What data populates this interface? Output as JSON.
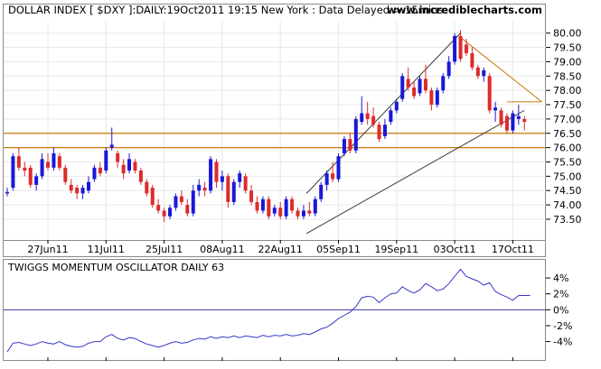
{
  "header": {
    "title": "DOLLAR INDEX [ $DXY ]:DAILY:19Oct2011 19:15 New York  : Data Delayed > 15mins",
    "website": "www.incrediblecharts.com"
  },
  "colors": {
    "up": "#1818d8",
    "down": "#dd2b2b",
    "channel": "#3a3a3a",
    "trendline": "#c8780a",
    "support": "#c8780a",
    "oscillator": "#3838c8",
    "grid": "#e8e8e8"
  },
  "chart_data": [
    {
      "type": "candlestick",
      "title": "DOLLAR INDEX [ $DXY ]:DAILY:19Oct2011 19:15 New York",
      "yticks": [
        "80.00",
        "79.50",
        "79.00",
        "78.50",
        "78.00",
        "77.50",
        "77.00",
        "76.50",
        "76.00",
        "75.50",
        "75.00",
        "74.50",
        "74.00",
        "73.50"
      ],
      "ylim": [
        72.9,
        80.4
      ],
      "xticks": [
        {
          "label": "27Jun11",
          "i": 7
        },
        {
          "label": "11Jul11",
          "i": 17
        },
        {
          "label": "25Jul11",
          "i": 27
        },
        {
          "label": "08Aug11",
          "i": 37
        },
        {
          "label": "22Aug11",
          "i": 47
        },
        {
          "label": "05Sep11",
          "i": 57
        },
        {
          "label": "19Sep11",
          "i": 67
        },
        {
          "label": "03Oct11",
          "i": 77
        },
        {
          "label": "17Oct11",
          "i": 87
        }
      ],
      "candles": [
        {
          "o": 74.4,
          "h": 74.6,
          "l": 74.3,
          "c": 74.45
        },
        {
          "o": 74.6,
          "h": 75.8,
          "l": 74.5,
          "c": 75.7
        },
        {
          "o": 75.7,
          "h": 76.0,
          "l": 75.2,
          "c": 75.3
        },
        {
          "o": 75.3,
          "h": 75.5,
          "l": 75.0,
          "c": 75.2
        },
        {
          "o": 75.3,
          "h": 75.4,
          "l": 74.6,
          "c": 74.7
        },
        {
          "o": 74.7,
          "h": 75.1,
          "l": 74.5,
          "c": 75.0
        },
        {
          "o": 75.0,
          "h": 75.8,
          "l": 74.9,
          "c": 75.6
        },
        {
          "o": 75.5,
          "h": 75.8,
          "l": 75.2,
          "c": 75.3
        },
        {
          "o": 75.3,
          "h": 76.0,
          "l": 75.2,
          "c": 75.8
        },
        {
          "o": 75.7,
          "h": 75.8,
          "l": 75.2,
          "c": 75.3
        },
        {
          "o": 75.3,
          "h": 75.4,
          "l": 74.7,
          "c": 74.8
        },
        {
          "o": 74.7,
          "h": 74.9,
          "l": 74.4,
          "c": 74.5
        },
        {
          "o": 74.6,
          "h": 74.7,
          "l": 74.2,
          "c": 74.4
        },
        {
          "o": 74.4,
          "h": 74.7,
          "l": 74.2,
          "c": 74.6
        },
        {
          "o": 74.5,
          "h": 75.0,
          "l": 74.4,
          "c": 74.8
        },
        {
          "o": 74.9,
          "h": 75.4,
          "l": 74.8,
          "c": 75.3
        },
        {
          "o": 75.3,
          "h": 75.5,
          "l": 75.0,
          "c": 75.1
        },
        {
          "o": 75.2,
          "h": 76.0,
          "l": 75.1,
          "c": 75.9
        },
        {
          "o": 76.0,
          "h": 76.7,
          "l": 75.9,
          "c": 76.1
        },
        {
          "o": 75.8,
          "h": 75.9,
          "l": 75.3,
          "c": 75.5
        },
        {
          "o": 75.4,
          "h": 75.6,
          "l": 74.9,
          "c": 75.1
        },
        {
          "o": 75.2,
          "h": 75.8,
          "l": 75.1,
          "c": 75.6
        },
        {
          "o": 75.5,
          "h": 75.6,
          "l": 75.1,
          "c": 75.2
        },
        {
          "o": 75.2,
          "h": 75.3,
          "l": 74.7,
          "c": 74.8
        },
        {
          "o": 74.8,
          "h": 74.9,
          "l": 74.3,
          "c": 74.4
        },
        {
          "o": 74.6,
          "h": 74.7,
          "l": 73.9,
          "c": 74.0
        },
        {
          "o": 74.0,
          "h": 74.2,
          "l": 73.7,
          "c": 73.8
        },
        {
          "o": 73.8,
          "h": 73.9,
          "l": 73.4,
          "c": 73.6
        },
        {
          "o": 73.6,
          "h": 74.0,
          "l": 73.5,
          "c": 73.9
        },
        {
          "o": 73.9,
          "h": 74.4,
          "l": 73.8,
          "c": 74.3
        },
        {
          "o": 74.3,
          "h": 74.5,
          "l": 74.0,
          "c": 74.1
        },
        {
          "o": 74.0,
          "h": 74.2,
          "l": 73.6,
          "c": 73.7
        },
        {
          "o": 73.7,
          "h": 74.7,
          "l": 73.6,
          "c": 74.5
        },
        {
          "o": 74.5,
          "h": 74.9,
          "l": 74.3,
          "c": 74.7
        },
        {
          "o": 74.6,
          "h": 74.8,
          "l": 74.3,
          "c": 74.5
        },
        {
          "o": 74.5,
          "h": 75.7,
          "l": 74.4,
          "c": 75.6
        },
        {
          "o": 75.5,
          "h": 75.6,
          "l": 74.6,
          "c": 74.8
        },
        {
          "o": 74.8,
          "h": 75.2,
          "l": 74.5,
          "c": 75.0
        },
        {
          "o": 75.0,
          "h": 75.1,
          "l": 73.9,
          "c": 74.1
        },
        {
          "o": 74.1,
          "h": 74.9,
          "l": 74.0,
          "c": 74.8
        },
        {
          "o": 74.8,
          "h": 75.2,
          "l": 74.6,
          "c": 75.1
        },
        {
          "o": 75.0,
          "h": 75.1,
          "l": 74.4,
          "c": 74.5
        },
        {
          "o": 74.5,
          "h": 74.7,
          "l": 74.0,
          "c": 74.1
        },
        {
          "o": 74.1,
          "h": 74.3,
          "l": 73.7,
          "c": 73.8
        },
        {
          "o": 73.8,
          "h": 74.3,
          "l": 73.7,
          "c": 74.2
        },
        {
          "o": 74.2,
          "h": 74.3,
          "l": 73.5,
          "c": 73.6
        },
        {
          "o": 73.7,
          "h": 74.0,
          "l": 73.6,
          "c": 73.9
        },
        {
          "o": 73.9,
          "h": 74.1,
          "l": 73.5,
          "c": 73.6
        },
        {
          "o": 73.6,
          "h": 74.3,
          "l": 73.5,
          "c": 74.2
        },
        {
          "o": 74.2,
          "h": 74.3,
          "l": 73.7,
          "c": 73.8
        },
        {
          "o": 73.8,
          "h": 73.9,
          "l": 73.5,
          "c": 73.6
        },
        {
          "o": 73.6,
          "h": 74.0,
          "l": 73.5,
          "c": 73.8
        },
        {
          "o": 73.8,
          "h": 74.1,
          "l": 73.6,
          "c": 73.7
        },
        {
          "o": 73.7,
          "h": 74.3,
          "l": 73.6,
          "c": 74.2
        },
        {
          "o": 74.2,
          "h": 74.8,
          "l": 74.1,
          "c": 74.7
        },
        {
          "o": 74.7,
          "h": 75.2,
          "l": 74.5,
          "c": 75.1
        },
        {
          "o": 75.1,
          "h": 75.5,
          "l": 74.8,
          "c": 74.9
        },
        {
          "o": 74.9,
          "h": 75.8,
          "l": 74.8,
          "c": 75.7
        },
        {
          "o": 75.8,
          "h": 76.4,
          "l": 75.7,
          "c": 76.3
        },
        {
          "o": 76.3,
          "h": 76.5,
          "l": 75.8,
          "c": 75.9
        },
        {
          "o": 75.9,
          "h": 77.1,
          "l": 75.8,
          "c": 77.0
        },
        {
          "o": 76.9,
          "h": 77.8,
          "l": 76.8,
          "c": 77.2
        },
        {
          "o": 77.2,
          "h": 77.6,
          "l": 76.8,
          "c": 77.0
        },
        {
          "o": 77.1,
          "h": 77.4,
          "l": 76.7,
          "c": 76.8
        },
        {
          "o": 76.8,
          "h": 76.9,
          "l": 76.2,
          "c": 76.3
        },
        {
          "o": 76.4,
          "h": 77.0,
          "l": 76.3,
          "c": 76.8
        },
        {
          "o": 76.9,
          "h": 77.4,
          "l": 76.8,
          "c": 77.3
        },
        {
          "o": 77.3,
          "h": 77.7,
          "l": 77.2,
          "c": 77.6
        },
        {
          "o": 77.7,
          "h": 78.6,
          "l": 77.6,
          "c": 78.5
        },
        {
          "o": 78.4,
          "h": 78.8,
          "l": 78.0,
          "c": 78.1
        },
        {
          "o": 78.1,
          "h": 78.3,
          "l": 77.7,
          "c": 77.8
        },
        {
          "o": 77.9,
          "h": 78.5,
          "l": 77.8,
          "c": 78.4
        },
        {
          "o": 78.4,
          "h": 78.9,
          "l": 77.9,
          "c": 78.0
        },
        {
          "o": 78.0,
          "h": 78.1,
          "l": 77.3,
          "c": 77.5
        },
        {
          "o": 77.5,
          "h": 78.1,
          "l": 77.4,
          "c": 78.0
        },
        {
          "o": 78.0,
          "h": 78.6,
          "l": 77.9,
          "c": 78.5
        },
        {
          "o": 78.5,
          "h": 79.2,
          "l": 78.4,
          "c": 79.0
        },
        {
          "o": 79.0,
          "h": 80.0,
          "l": 78.9,
          "c": 79.9
        },
        {
          "o": 79.9,
          "h": 80.1,
          "l": 79.0,
          "c": 79.1
        },
        {
          "o": 79.6,
          "h": 79.8,
          "l": 79.2,
          "c": 79.3
        },
        {
          "o": 79.3,
          "h": 79.5,
          "l": 78.7,
          "c": 78.8
        },
        {
          "o": 78.8,
          "h": 78.9,
          "l": 78.4,
          "c": 78.5
        },
        {
          "o": 78.5,
          "h": 78.8,
          "l": 78.3,
          "c": 78.7
        },
        {
          "o": 78.5,
          "h": 78.6,
          "l": 77.2,
          "c": 77.3
        },
        {
          "o": 77.3,
          "h": 77.6,
          "l": 76.9,
          "c": 77.4
        },
        {
          "o": 77.3,
          "h": 77.4,
          "l": 76.7,
          "c": 76.8
        },
        {
          "o": 77.1,
          "h": 77.2,
          "l": 76.5,
          "c": 76.6
        },
        {
          "o": 76.6,
          "h": 77.3,
          "l": 76.5,
          "c": 77.2
        },
        {
          "o": 77.0,
          "h": 77.5,
          "l": 76.8,
          "c": 77.1
        },
        {
          "o": 77.0,
          "h": 77.1,
          "l": 76.6,
          "c": 76.9
        }
      ],
      "lines": [
        {
          "kind": "channel-lower",
          "from": [
            51.5,
            73.0
          ],
          "to": [
            89,
            77.3
          ]
        },
        {
          "kind": "channel-upper",
          "from": [
            51.5,
            74.4
          ],
          "to": [
            78,
            80.0
          ]
        },
        {
          "kind": "trendline",
          "from": [
            78,
            79.85
          ],
          "to": [
            92,
            77.6
          ]
        },
        {
          "kind": "trendline-flat",
          "from": [
            86,
            77.6
          ],
          "to": [
            92,
            77.6
          ]
        }
      ],
      "levels": [
        76.5,
        76.0
      ]
    },
    {
      "type": "line",
      "title": "TWIGGS MOMENTUM OSCILLATOR DAILY 63",
      "yticks": [
        "4%",
        "2%",
        "0%",
        "-2%",
        "-4%"
      ],
      "ylim": [
        -6.2,
        5.6
      ],
      "zero_line": 0,
      "values": [
        -5.3,
        -4.2,
        -4.1,
        -4.3,
        -4.5,
        -4.3,
        -4.0,
        -4.2,
        -4.3,
        -4.0,
        -4.4,
        -4.6,
        -4.7,
        -4.6,
        -4.2,
        -4.0,
        -4.0,
        -3.4,
        -3.1,
        -3.6,
        -3.8,
        -3.5,
        -3.6,
        -4.0,
        -4.3,
        -4.5,
        -4.7,
        -4.5,
        -4.2,
        -4.0,
        -4.2,
        -4.1,
        -3.8,
        -3.6,
        -3.7,
        -3.4,
        -3.6,
        -3.4,
        -3.5,
        -3.3,
        -3.5,
        -3.3,
        -3.4,
        -3.5,
        -3.2,
        -3.4,
        -3.2,
        -3.3,
        -3.1,
        -3.3,
        -3.2,
        -3.0,
        -3.1,
        -2.8,
        -2.4,
        -2.2,
        -1.7,
        -1.1,
        -0.7,
        -0.3,
        0.4,
        1.5,
        1.7,
        1.6,
        0.9,
        1.5,
        2.0,
        2.1,
        2.9,
        2.4,
        2.1,
        2.5,
        3.3,
        2.9,
        2.4,
        2.6,
        3.3,
        4.2,
        5.1,
        4.2,
        3.9,
        3.6,
        3.1,
        3.4,
        2.3,
        1.9,
        1.6,
        1.2,
        1.8,
        1.8,
        1.8
      ]
    }
  ]
}
